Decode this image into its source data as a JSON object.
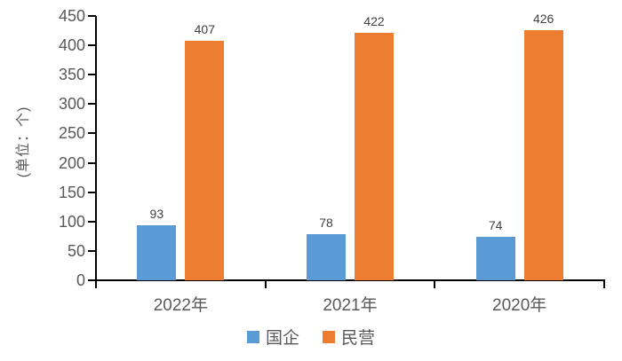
{
  "chart_data": {
    "type": "bar",
    "categories": [
      "2022年",
      "2021年",
      "2020年"
    ],
    "series": [
      {
        "name": "国企",
        "color": "#5B9BD5",
        "values": [
          93,
          78,
          74
        ]
      },
      {
        "name": "民营",
        "color": "#ED7D31",
        "values": [
          407,
          422,
          426
        ]
      }
    ],
    "title": "",
    "xlabel": "",
    "ylabel": "(单位：个)",
    "ylim": [
      0,
      450
    ],
    "yticks": [
      0,
      50,
      100,
      150,
      200,
      250,
      300,
      350,
      400,
      450
    ],
    "grid": false,
    "legend_position": "bottom",
    "show_data_labels": true
  },
  "colors": {
    "axis_line": "#000000",
    "tick_label": "#595959",
    "data_label": "#404040",
    "background": "#ffffff"
  }
}
